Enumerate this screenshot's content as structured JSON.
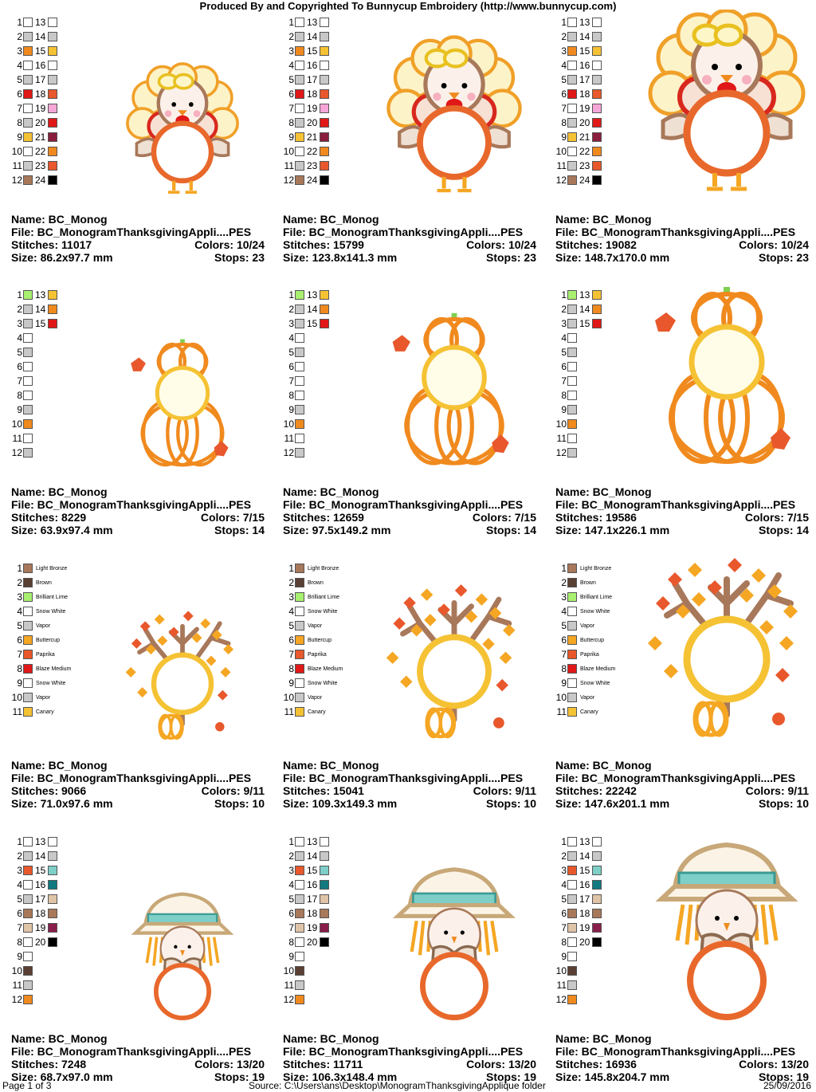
{
  "header": "Produced By and Copyrighted To Bunnycup Embroidery (http://www.bunnycup.com)",
  "footer": {
    "page": "Page 1 of 3",
    "source": "Source: C:\\Users\\ans\\Desktop\\MonogramThanksgivingApplique folder",
    "date": "25/09/2016"
  },
  "labels": {
    "name": "Name:",
    "file": "File:",
    "stitches": "Stitches:",
    "colors": "Colors:",
    "size": "Size:",
    "stops": "Stops:"
  },
  "palettes": {
    "turkey": [
      [
        "#ffffff",
        "#ffffff"
      ],
      [
        "#c8c8c8",
        "#c8c8c8"
      ],
      [
        "#f08a1e",
        "#f5c234"
      ],
      [
        "#ffffff",
        "#ffffff"
      ],
      [
        "#c8c8c8",
        "#c8c8c8"
      ],
      [
        "#e01818",
        "#e8582c"
      ],
      [
        "#ffffff",
        "#f7a6d8"
      ],
      [
        "#c8c8c8",
        "#e01818"
      ],
      [
        "#f5c234",
        "#8a1e3c"
      ],
      [
        "#ffffff",
        "#f08a1e"
      ],
      [
        "#c8c8c8",
        "#e8582c"
      ],
      [
        "#a8785a",
        "#000000"
      ]
    ],
    "pumpkin": [
      [
        "#a8f070",
        "#f5c234"
      ],
      [
        "#c8c8c8",
        "#f08a1e"
      ],
      [
        "#c8c8c8",
        "#e01818"
      ],
      [
        "#ffffff",
        null
      ],
      [
        "#c8c8c8",
        null
      ],
      [
        "#ffffff",
        null
      ],
      [
        "#ffffff",
        null
      ],
      [
        "#ffffff",
        null
      ],
      [
        "#c8c8c8",
        null
      ],
      [
        "#f08a1e",
        null
      ],
      [
        "#ffffff",
        null
      ],
      [
        "#c8c8c8",
        null
      ]
    ],
    "scarecrow": [
      [
        "#ffffff",
        "#ffffff"
      ],
      [
        "#c8c8c8",
        "#c8c8c8"
      ],
      [
        "#e8582c",
        "#7ecfc8"
      ],
      [
        "#ffffff",
        "#117a80"
      ],
      [
        "#c8c8c8",
        "#e0c4a8"
      ],
      [
        "#a8785a",
        "#a8785a"
      ],
      [
        "#e0c4a8",
        "#8a1e4a"
      ],
      [
        "#ffffff",
        "#000000"
      ],
      [
        "#ffffff",
        null
      ],
      [
        "#5a4034",
        null
      ],
      [
        "#c8c8c8",
        null
      ],
      [
        "#f08a1e",
        null
      ]
    ],
    "tree": [
      {
        "color": "#a8785a",
        "name": "Light Bronze"
      },
      {
        "color": "#5a4034",
        "name": "Brown"
      },
      {
        "color": "#a8f070",
        "name": "Brilliant Lime"
      },
      {
        "color": "#ffffff",
        "name": "Snow White"
      },
      {
        "color": "#c8c8c8",
        "name": "Vapor"
      },
      {
        "color": "#f5a623",
        "name": "Buttercup"
      },
      {
        "color": "#e8582c",
        "name": "Paprika"
      },
      {
        "color": "#e01818",
        "name": "Blaze Medium"
      },
      {
        "color": "#ffffff",
        "name": "Snow White"
      },
      {
        "color": "#c8c8c8",
        "name": "Vapor"
      },
      {
        "color": "#f5c234",
        "name": "Canary"
      }
    ]
  },
  "designs": [
    {
      "kind": "turkey",
      "name": "BC_Monog",
      "file": "BC_MonogramThanksgivingAppli....PES",
      "stitches": "11017",
      "colors": "10/24",
      "size": "86.2x97.7 mm",
      "stops": "23",
      "scale": 0.72
    },
    {
      "kind": "turkey",
      "name": "BC_Monog",
      "file": "BC_MonogramThanksgivingAppli....PES",
      "stitches": "15799",
      "colors": "10/24",
      "size": "123.8x141.3 mm",
      "stops": "23",
      "scale": 0.86
    },
    {
      "kind": "turkey",
      "name": "BC_Monog",
      "file": "BC_MonogramThanksgivingAppli....PES",
      "stitches": "19082",
      "colors": "10/24",
      "size": "148.7x170.0 mm",
      "stops": "23",
      "scale": 1.0
    },
    {
      "kind": "pumpkin",
      "name": "BC_Monog",
      "file": "BC_MonogramThanksgivingAppli....PES",
      "stitches": "8229",
      "colors": "7/15",
      "size": "63.9x97.4 mm",
      "stops": "14",
      "scale": 0.72
    },
    {
      "kind": "pumpkin",
      "name": "BC_Monog",
      "file": "BC_MonogramThanksgivingAppli....PES",
      "stitches": "12659",
      "colors": "7/15",
      "size": "97.5x149.2 mm",
      "stops": "14",
      "scale": 0.86
    },
    {
      "kind": "pumpkin",
      "name": "BC_Monog",
      "file": "BC_MonogramThanksgivingAppli....PES",
      "stitches": "19586",
      "colors": "7/15",
      "size": "147.1x226.1 mm",
      "stops": "14",
      "scale": 1.0
    },
    {
      "kind": "tree",
      "name": "BC_Monog",
      "file": "BC_MonogramThanksgivingAppli....PES",
      "stitches": "9066",
      "colors": "9/11",
      "size": "71.0x97.6 mm",
      "stops": "10",
      "scale": 0.72
    },
    {
      "kind": "tree",
      "name": "BC_Monog",
      "file": "BC_MonogramThanksgivingAppli....PES",
      "stitches": "15041",
      "colors": "9/11",
      "size": "109.3x149.3 mm",
      "stops": "10",
      "scale": 0.86
    },
    {
      "kind": "tree",
      "name": "BC_Monog",
      "file": "BC_MonogramThanksgivingAppli....PES",
      "stitches": "22242",
      "colors": "9/11",
      "size": "147.6x201.1 mm",
      "stops": "10",
      "scale": 1.0
    },
    {
      "kind": "scarecrow",
      "name": "BC_Monog",
      "file": "BC_MonogramThanksgivingAppli....PES",
      "stitches": "7248",
      "colors": "13/20",
      "size": "68.7x97.0 mm",
      "stops": "19",
      "scale": 0.72
    },
    {
      "kind": "scarecrow",
      "name": "BC_Monog",
      "file": "BC_MonogramThanksgivingAppli....PES",
      "stitches": "11711",
      "colors": "13/20",
      "size": "106.3x148.4 mm",
      "stops": "19",
      "scale": 0.86
    },
    {
      "kind": "scarecrow",
      "name": "BC_Monog",
      "file": "BC_MonogramThanksgivingAppli....PES",
      "stitches": "16936",
      "colors": "13/20",
      "size": "145.8x204.7 mm",
      "stops": "19",
      "scale": 1.0
    }
  ]
}
